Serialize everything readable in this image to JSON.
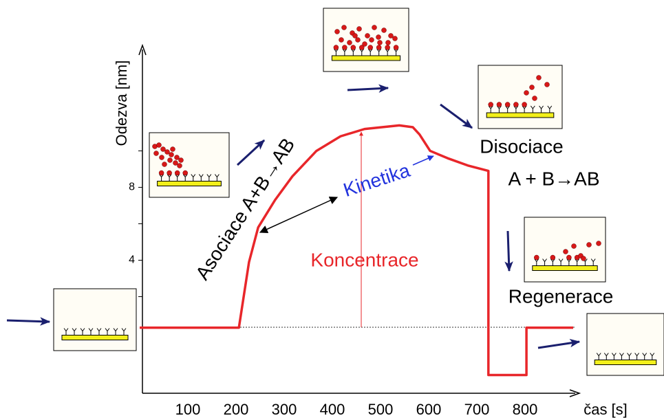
{
  "chart_data": {
    "type": "line",
    "ylabel": "Odezva  [nm]",
    "xlabel": "čas [s]",
    "x": [
      0,
      206,
      227,
      246,
      281,
      317,
      367,
      417,
      467,
      539,
      567,
      581,
      603,
      639,
      681,
      724,
      724,
      803,
      803,
      900
    ],
    "values": [
      0.3,
      0.3,
      3.9,
      5.8,
      7.3,
      8.6,
      10.0,
      10.8,
      11.2,
      11.4,
      11.3,
      10.9,
      10.0,
      9.6,
      9.2,
      8.9,
      -2.3,
      -2.3,
      0.3,
      0.3
    ],
    "color": "#e8262a",
    "xlim": [
      0,
      900
    ],
    "xticks": [
      100,
      200,
      300,
      400,
      500,
      600,
      700,
      800
    ],
    "ylim": [
      -3.3,
      15.6
    ],
    "yticks": [
      4,
      8
    ],
    "yminor": [
      2,
      6,
      10
    ],
    "annotations": [
      "Asociace A+B→AB",
      "Kinetika",
      "Koncentrace",
      "Disociace",
      "A + B→AB",
      "Regenerace"
    ]
  }
}
